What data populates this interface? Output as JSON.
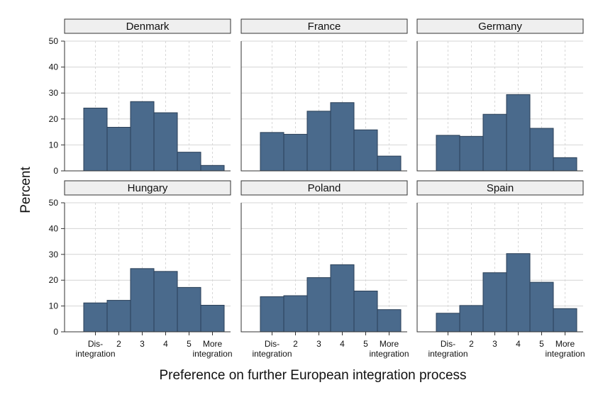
{
  "chart_data": {
    "type": "bar",
    "ylabel": "Percent",
    "xlabel": "Preference on further European integration process",
    "ylim": [
      0,
      50
    ],
    "yticks": [
      0,
      10,
      20,
      30,
      40,
      50
    ],
    "categories": [
      "Dis-\nintegration",
      "2",
      "3",
      "4",
      "5",
      "More\nintegration"
    ],
    "grid": true,
    "bar_color": "#4a6a8c",
    "panels": [
      {
        "title": "Denmark",
        "values": [
          24.2,
          16.8,
          26.7,
          22.4,
          7.2,
          2.1
        ]
      },
      {
        "title": "France",
        "values": [
          14.8,
          14.1,
          23.0,
          26.3,
          15.8,
          5.7
        ]
      },
      {
        "title": "Germany",
        "values": [
          13.7,
          13.3,
          21.8,
          29.4,
          16.4,
          5.1
        ]
      },
      {
        "title": "Hungary",
        "values": [
          11.2,
          12.2,
          24.5,
          23.4,
          17.2,
          10.3
        ]
      },
      {
        "title": "Poland",
        "values": [
          13.6,
          14.0,
          21.0,
          26.0,
          15.8,
          8.6
        ]
      },
      {
        "title": "Spain",
        "values": [
          7.2,
          10.2,
          22.9,
          30.3,
          19.2,
          9.0
        ]
      }
    ]
  }
}
